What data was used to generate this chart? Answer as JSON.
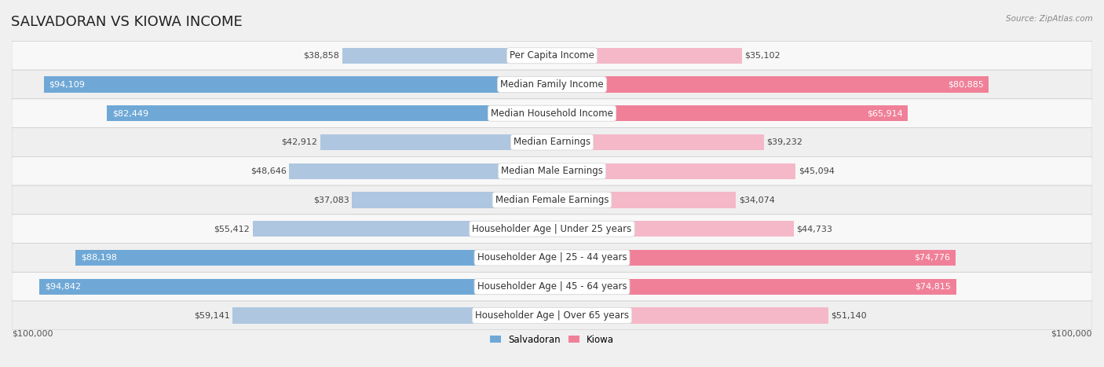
{
  "title": "SALVADORAN VS KIOWA INCOME",
  "source": "Source: ZipAtlas.com",
  "categories": [
    "Per Capita Income",
    "Median Family Income",
    "Median Household Income",
    "Median Earnings",
    "Median Male Earnings",
    "Median Female Earnings",
    "Householder Age | Under 25 years",
    "Householder Age | 25 - 44 years",
    "Householder Age | 45 - 64 years",
    "Householder Age | Over 65 years"
  ],
  "salvadoran_values": [
    38858,
    94109,
    82449,
    42912,
    48646,
    37083,
    55412,
    88198,
    94842,
    59141
  ],
  "kiowa_values": [
    35102,
    80885,
    65914,
    39232,
    45094,
    34074,
    44733,
    74776,
    74815,
    51140
  ],
  "max_value": 100000,
  "salvadoran_color_dark": "#6fa8d6",
  "salvadoran_color_light": "#aec6e0",
  "kiowa_color_dark": "#f08098",
  "kiowa_color_light": "#f4b8c8",
  "label_color_dark_blue": "#5a8fc0",
  "label_color_dark_pink": "#e06080",
  "bg_color": "#f0f0f0",
  "row_bg_light": "#f8f8f8",
  "row_bg_dark": "#efefef",
  "center_label_bg": "#ffffff",
  "bar_height": 0.55,
  "title_fontsize": 13,
  "label_fontsize": 8.5,
  "value_fontsize": 8,
  "axis_label_fontsize": 8,
  "figsize": [
    14.06,
    4.67
  ],
  "dpi": 100
}
